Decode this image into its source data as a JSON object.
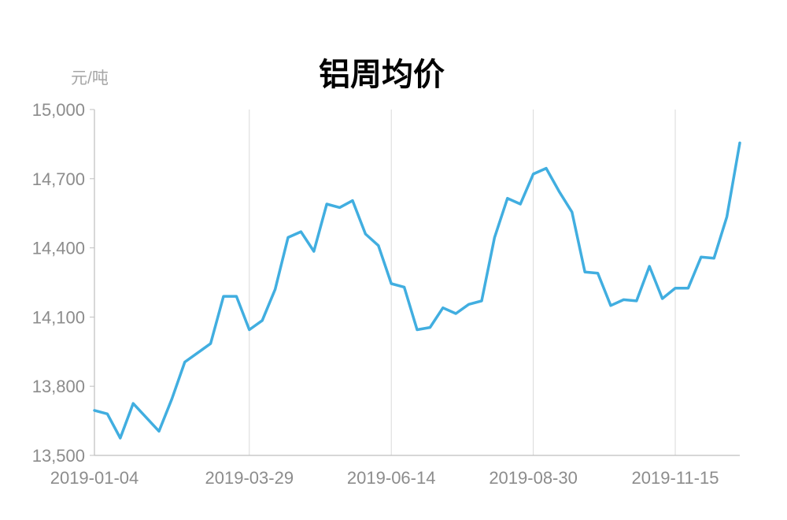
{
  "chart_data": {
    "type": "line",
    "title": "铝周均价",
    "y_unit": "元/吨",
    "ylim": [
      13500,
      15000
    ],
    "y_ticks": [
      "13,500",
      "13,800",
      "14,100",
      "14,400",
      "14,700",
      "15,000"
    ],
    "y_tick_values": [
      13500,
      13800,
      14100,
      14400,
      14700,
      15000
    ],
    "x_tick_labels": [
      "2019-01-04",
      "2019-03-29",
      "2019-06-14",
      "2019-08-30",
      "2019-11-15"
    ],
    "x_tick_indices": [
      0,
      12,
      23,
      34,
      45
    ],
    "grid": "vertical",
    "line_color": "#41aee0",
    "values": [
      13695,
      13680,
      13575,
      13725,
      13665,
      13605,
      13745,
      13905,
      13945,
      13985,
      14190,
      14190,
      14045,
      14085,
      14220,
      14445,
      14470,
      14385,
      14590,
      14575,
      14605,
      14460,
      14410,
      14245,
      14230,
      14045,
      14055,
      14140,
      14115,
      14155,
      14170,
      14445,
      14615,
      14590,
      14720,
      14745,
      14645,
      14555,
      14295,
      14290,
      14150,
      14175,
      14170,
      14320,
      14180,
      14225,
      14225,
      14360,
      14355,
      14535,
      14855
    ]
  }
}
